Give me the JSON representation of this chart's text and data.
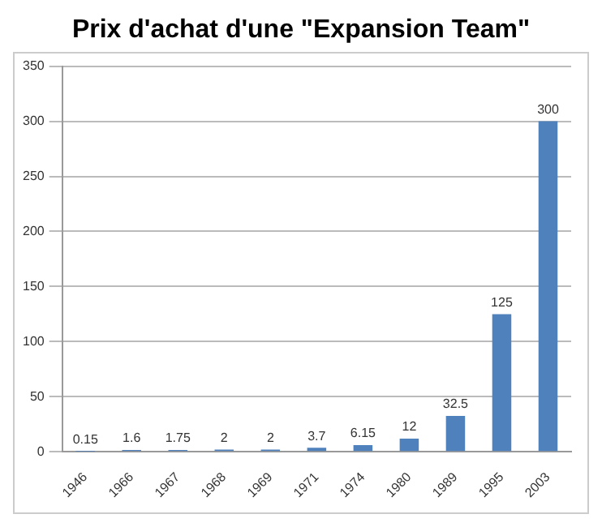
{
  "chart_data": {
    "type": "bar",
    "title": "Prix d'achat d'une \"Expansion Team\"",
    "categories": [
      "1946",
      "1966",
      "1967",
      "1968",
      "1969",
      "1971",
      "1974",
      "1980",
      "1989",
      "1995",
      "2003"
    ],
    "values": [
      0.15,
      1.6,
      1.75,
      2,
      2,
      3.7,
      6.15,
      12,
      32.5,
      125,
      300
    ],
    "color": "#4f81bd",
    "ylim": [
      0,
      350
    ],
    "yticks": [
      0,
      50,
      100,
      150,
      200,
      250,
      300,
      350
    ],
    "grid": "y",
    "data_labels": true
  }
}
